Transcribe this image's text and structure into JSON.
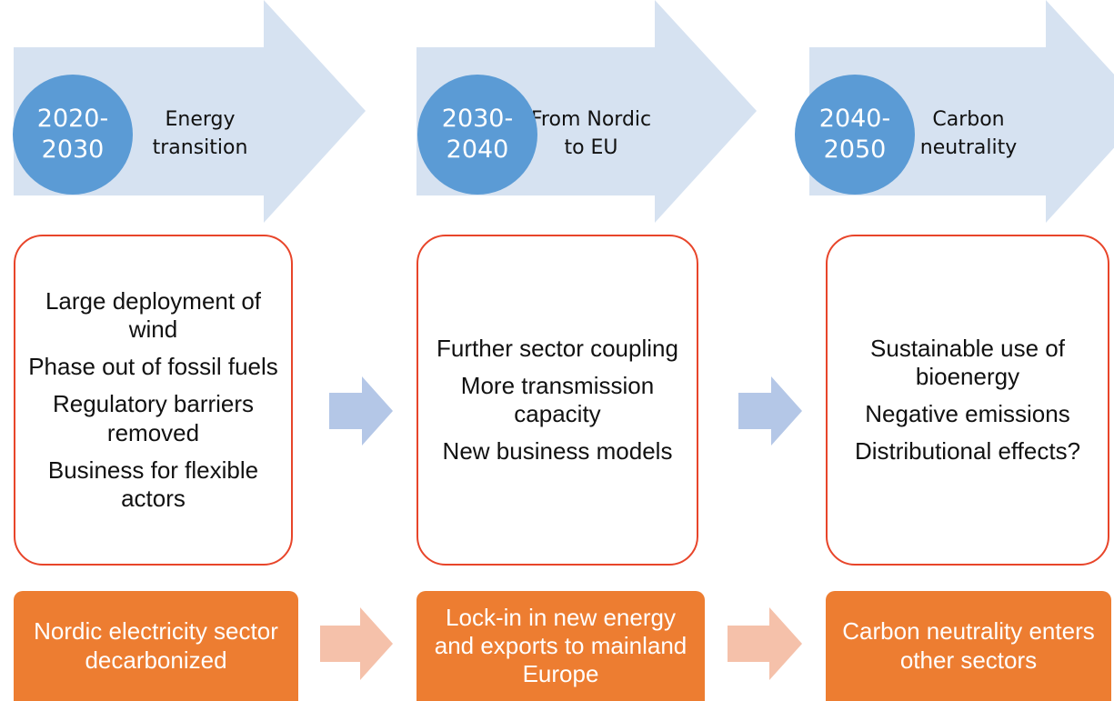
{
  "phases": [
    {
      "period": [
        "2020-",
        "2030"
      ],
      "title": [
        "Energy",
        "transition"
      ],
      "items": [
        "Large deployment of wind",
        "Phase out of fossil fuels",
        "Regulatory barriers removed",
        "Business for flexible actors"
      ],
      "outcome": "Nordic electricity sector decarbonized"
    },
    {
      "period": [
        "2030-",
        "2040"
      ],
      "title": [
        "From Nordic",
        "to EU"
      ],
      "items": [
        "Further sector coupling",
        "More transmission capacity",
        "New business models"
      ],
      "outcome": "Lock-in in new energy and exports to mainland Europe"
    },
    {
      "period": [
        "2040-",
        "2050"
      ],
      "title": [
        "Carbon",
        "neutrality"
      ],
      "items": [
        "Sustainable use of bioenergy",
        "Negative emissions",
        "Distributional effects?"
      ],
      "outcome": "Carbon neutrality enters other sectors"
    }
  ]
}
